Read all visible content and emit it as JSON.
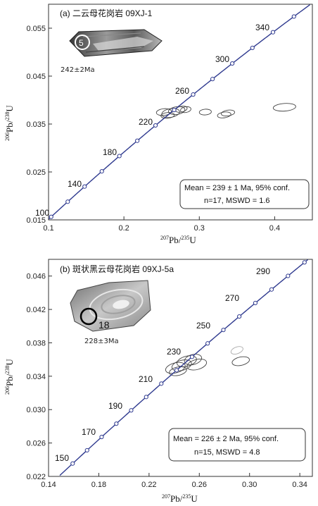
{
  "chart_data": [
    {
      "type": "concordia",
      "title": "(a) 二云母花岗岩 09XJ-1",
      "xlabel": {
        "mass": "207",
        "element": "Pb",
        "sep": "/",
        "mass2": "235",
        "element2": "U"
      },
      "ylabel": {
        "mass": "206",
        "element": "Pb",
        "sep": "/",
        "mass2": "238",
        "element2": "U"
      },
      "xlim": [
        0.1,
        0.45
      ],
      "ylim": [
        0.015,
        0.06
      ],
      "xticks": [
        "0.1",
        "0.2",
        "0.3",
        "0.4"
      ],
      "yticks": [
        "0.015",
        "0.025",
        "0.035",
        "0.045",
        "0.055"
      ],
      "age_labels": [
        "100",
        "140",
        "180",
        "220",
        "260",
        "300",
        "340"
      ],
      "result_box": [
        "Mean = 239 ± 1 Ma, 95% conf.",
        "n=17, MSWD = 1.6"
      ],
      "zircon": {
        "spot": "5",
        "age": "242±2Ma"
      },
      "ellipses": [
        {
          "x": 0.253,
          "y": 0.0375,
          "rx": 0.01,
          "ry": 0.0007,
          "angle": -6
        },
        {
          "x": 0.262,
          "y": 0.0373,
          "rx": 0.012,
          "ry": 0.0009,
          "angle": -10
        },
        {
          "x": 0.27,
          "y": 0.0378,
          "rx": 0.011,
          "ry": 0.0008,
          "angle": -8
        },
        {
          "x": 0.276,
          "y": 0.0381,
          "rx": 0.008,
          "ry": 0.0006,
          "angle": -12
        },
        {
          "x": 0.282,
          "y": 0.038,
          "rx": 0.007,
          "ry": 0.0006,
          "angle": -10
        },
        {
          "x": 0.258,
          "y": 0.0368,
          "rx": 0.009,
          "ry": 0.0006,
          "angle": -5
        },
        {
          "x": 0.308,
          "y": 0.0375,
          "rx": 0.008,
          "ry": 0.0006,
          "angle": -4
        },
        {
          "x": 0.333,
          "y": 0.0369,
          "rx": 0.009,
          "ry": 0.0006,
          "angle": -8
        },
        {
          "x": 0.338,
          "y": 0.0373,
          "rx": 0.009,
          "ry": 0.0006,
          "angle": -8
        },
        {
          "x": 0.413,
          "y": 0.0385,
          "rx": 0.015,
          "ry": 0.0008,
          "angle": -4
        }
      ]
    },
    {
      "type": "concordia",
      "title": "(b) 斑状黑云母花岗岩 09XJ-5a",
      "xlabel": {
        "mass": "207",
        "element": "Pb",
        "sep": "/",
        "mass2": "235",
        "element2": "U"
      },
      "ylabel": {
        "mass": "206",
        "element": "Pb",
        "sep": "/",
        "mass2": "238",
        "element2": "U"
      },
      "xlim": [
        0.14,
        0.35
      ],
      "ylim": [
        0.022,
        0.048
      ],
      "xticks": [
        "0.14",
        "0.18",
        "0.22",
        "0.26",
        "0.30",
        "0.34"
      ],
      "yticks": [
        "0.022",
        "0.026",
        "0.030",
        "0.034",
        "0.038",
        "0.042",
        "0.046"
      ],
      "age_labels": [
        "150",
        "170",
        "190",
        "210",
        "230",
        "250",
        "270",
        "290"
      ],
      "result_box": [
        "Mean = 226 ± 2 Ma, 95% conf.",
        "n=15, MSWD = 4.8"
      ],
      "zircon": {
        "spot": "18",
        "age": "228±3Ma"
      },
      "ellipses": [
        {
          "x": 0.241,
          "y": 0.035,
          "rx": 0.008,
          "ry": 0.0006,
          "angle": -15
        },
        {
          "x": 0.246,
          "y": 0.0353,
          "rx": 0.008,
          "ry": 0.0006,
          "angle": -15
        },
        {
          "x": 0.25,
          "y": 0.0358,
          "rx": 0.008,
          "ry": 0.0006,
          "angle": -15
        },
        {
          "x": 0.255,
          "y": 0.036,
          "rx": 0.007,
          "ry": 0.0006,
          "angle": -15
        },
        {
          "x": 0.258,
          "y": 0.0354,
          "rx": 0.008,
          "ry": 0.0006,
          "angle": -15
        },
        {
          "x": 0.243,
          "y": 0.0346,
          "rx": 0.007,
          "ry": 0.0005,
          "angle": -12
        },
        {
          "x": 0.293,
          "y": 0.0358,
          "rx": 0.007,
          "ry": 0.0005,
          "angle": -12
        },
        {
          "x": 0.29,
          "y": 0.0371,
          "rx": 0.005,
          "ry": 0.0004,
          "angle": -20,
          "faint": true
        }
      ]
    }
  ]
}
